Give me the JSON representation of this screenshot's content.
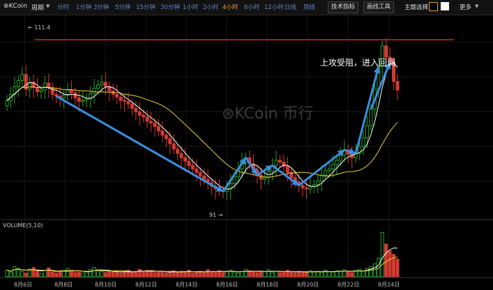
{
  "toolbar": {
    "logo": "⊛KCoin",
    "period_label": "周期",
    "intervals": [
      "分时",
      "1分钟",
      "3分钟",
      "5分钟",
      "15分钟",
      "30分钟",
      "1小时",
      "2小时",
      "4小时",
      "6小时",
      "12小时",
      "日线",
      "周线"
    ],
    "active_interval": "4小时",
    "tech_button": "技术指标",
    "draw_button": "画线工具",
    "theme_label": "主题选择",
    "more_label": "更多"
  },
  "chart": {
    "watermark": "⊛KCoin 币行",
    "annotation": "上攻受阻，进入回调",
    "high_label": "← 111.4",
    "low_label": "91 →",
    "volume_label": "VOLUME(5,10)",
    "x_labels": [
      "8月6日",
      "8月8日",
      "8月10日",
      "8月12日",
      "8月14日",
      "8月16日",
      "8月18日",
      "8月20日",
      "8月22日",
      "8月24日"
    ]
  },
  "chart_data": {
    "type": "candlestick",
    "instrument": "KCoin",
    "interval": "4小时",
    "price_range": [
      89,
      112
    ],
    "high": 111.4,
    "low": 91,
    "colors": {
      "up": "#25a028",
      "down": "#d33a30",
      "ma_fast": "#ffffff",
      "ma_slow": "#e6d23c",
      "resistance": "#cc2a2a",
      "arrow": "#3b8ee0"
    },
    "closes": [
      102.5,
      103.2,
      104.1,
      104.8,
      105.5,
      103.8,
      104.6,
      104.0,
      103.5,
      103.7,
      104.5,
      104.0,
      103.2,
      103.0,
      102.8,
      103.1,
      103.7,
      103.4,
      102.8,
      102.4,
      102.5,
      102.7,
      103.3,
      103.9,
      104.3,
      104.6,
      104.1,
      103.6,
      103.2,
      102.9,
      102.5,
      102.4,
      102.1,
      101.6,
      101.2,
      100.8,
      100.6,
      100.1,
      99.9,
      99.5,
      99.0,
      98.5,
      98.1,
      97.5,
      96.9,
      96.4,
      95.9,
      95.5,
      95.0,
      94.6,
      94.2,
      93.8,
      93.4,
      93.0,
      92.6,
      92.3,
      92.1,
      92.0,
      92.3,
      92.9,
      93.7,
      94.6,
      95.4,
      95.9,
      95.2,
      94.5,
      93.9,
      93.4,
      93.6,
      94.3,
      95.0,
      95.6,
      95.4,
      94.9,
      94.2,
      93.6,
      93.1,
      92.7,
      92.4,
      92.3,
      92.6,
      92.8,
      93.2,
      93.9,
      94.4,
      94.6,
      95.1,
      95.6,
      96.2,
      96.8,
      96.3,
      95.9,
      96.4,
      97.2,
      98.2,
      99.6,
      101.5,
      103.8,
      106.4,
      108.8,
      107.5,
      106.9,
      104.7,
      103.7
    ],
    "volume_range": [
      0,
      100
    ],
    "volume": [
      14,
      10,
      22,
      18,
      12,
      8,
      16,
      20,
      12,
      7,
      14,
      19,
      10,
      8,
      11,
      13,
      18,
      14,
      9,
      10,
      8,
      12,
      16,
      20,
      15,
      11,
      9,
      13,
      12,
      10,
      8,
      11,
      14,
      9,
      12,
      16,
      10,
      14,
      13,
      9,
      12,
      11,
      8,
      10,
      13,
      9,
      12,
      11,
      14,
      8,
      10,
      12,
      9,
      15,
      11,
      10,
      13,
      9,
      12,
      14,
      10,
      8,
      11,
      16,
      13,
      10,
      9,
      12,
      11,
      15,
      10,
      12,
      9,
      11,
      14,
      10,
      8,
      12,
      9,
      11,
      13,
      10,
      12,
      9,
      14,
      11,
      10,
      13,
      12,
      15,
      10,
      9,
      14,
      16,
      12,
      18,
      22,
      28,
      40,
      95,
      70,
      55,
      48,
      38
    ]
  }
}
